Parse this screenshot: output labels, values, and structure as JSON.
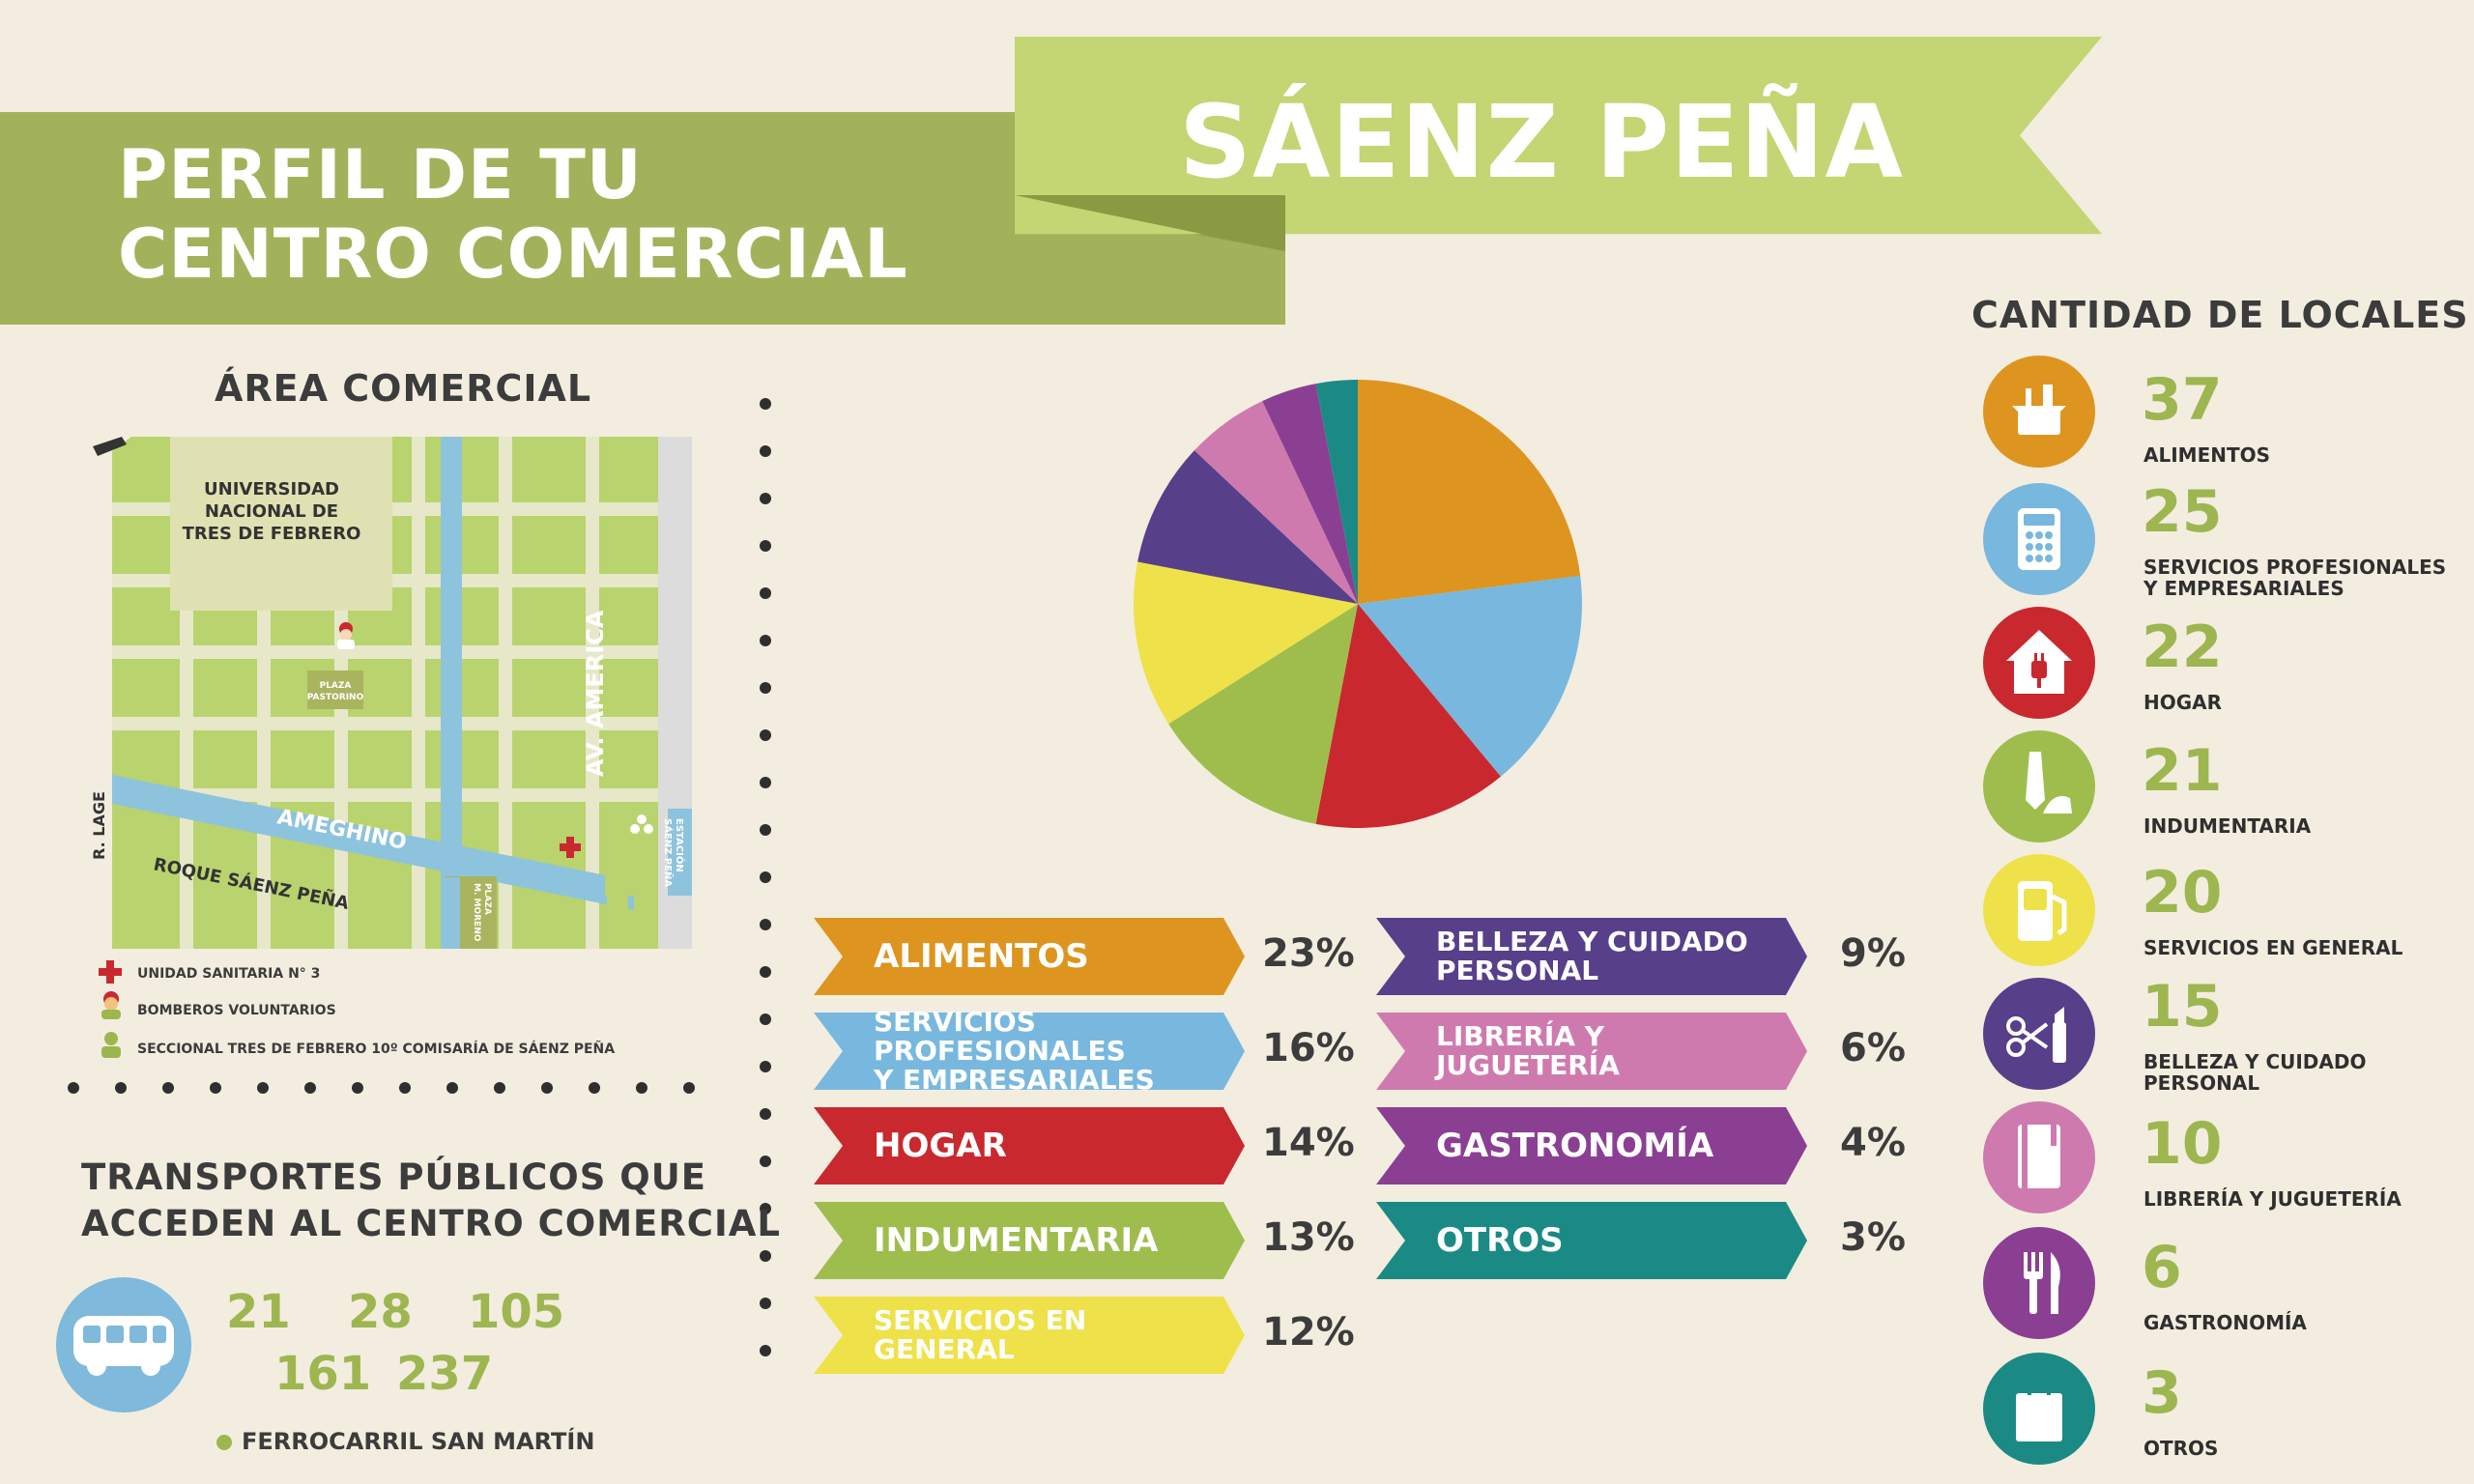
{
  "header": {
    "title_line1": "PERFIL DE TU",
    "title_line2": "CENTRO COMERCIAL",
    "center_name": "SÁENZ PEÑA"
  },
  "area": {
    "title": "ÁREA COMERCIAL",
    "map_labels": {
      "university": [
        "UNIVERSIDAD",
        "NACIONAL DE",
        "TRES DE FEBRERO"
      ],
      "plaza_pastorino": [
        "PLAZA",
        "PASTORINO"
      ],
      "av_america": "AV. AMERICA",
      "ameghino": "AMEGHINO",
      "roque": "ROQUE SÁENZ PEÑA",
      "r_lage": "R. LAGE",
      "estacion": [
        "ESTACIÓN",
        "SÁENZ PEÑA"
      ],
      "plaza_moreno": [
        "PLAZA",
        "M. MORENO"
      ]
    },
    "legend": [
      {
        "icon": "red-cross-icon",
        "label": "UNIDAD SANITARIA N° 3"
      },
      {
        "icon": "firefighter-icon",
        "label": "BOMBEROS VOLUNTARIOS"
      },
      {
        "icon": "police-icon",
        "label": "SECCIONAL TRES DE FEBRERO 10º COMISARÍA DE SÁENZ PEÑA"
      }
    ]
  },
  "transport": {
    "title_line1": "TRANSPORTES PÚBLICOS QUE",
    "title_line2": "ACCEDEN AL CENTRO COMERCIAL",
    "routes_row1": [
      "21",
      "28",
      "105"
    ],
    "routes_row2": [
      "161",
      "237"
    ],
    "rail": "FERROCARRIL SAN MARTÍN"
  },
  "colors": {
    "alimentos": "#dd951f",
    "servicios_prof": "#78b8de",
    "hogar": "#c9282e",
    "indumentaria": "#9fbd4d",
    "servicios_gen": "#efe14a",
    "belleza": "#573f8a",
    "libreria": "#cf7aaf",
    "gastronomia": "#8b3f93",
    "otros": "#1b8a84",
    "banner": "#a2b25a",
    "ribbon": "#c4d573",
    "ribbon_fold": "#91a04a",
    "green_text": "#9db650"
  },
  "chart_data": {
    "type": "pie",
    "categories": [
      "ALIMENTOS",
      "SERVICIOS PROFESIONALES Y EMPRESARIALES",
      "HOGAR",
      "INDUMENTARIA",
      "SERVICIOS EN GENERAL",
      "BELLEZA Y CUIDADO PERSONAL",
      "LIBRERÍA Y JUGUETERÍA",
      "GASTRONOMÍA",
      "OTROS"
    ],
    "values": [
      23,
      16,
      14,
      13,
      12,
      9,
      6,
      4,
      3
    ],
    "value_labels": [
      "23%",
      "16%",
      "14%",
      "13%",
      "12%",
      "9%",
      "6%",
      "4%",
      "3%"
    ],
    "start": "12 o'clock, clockwise"
  },
  "legend_left": [
    {
      "lines": [
        "ALIMENTOS"
      ],
      "pct": "23%",
      "color": "#dd951f"
    },
    {
      "lines": [
        "SERVICIOS PROFESIONALES",
        "Y EMPRESARIALES"
      ],
      "pct": "16%",
      "color": "#78b8de"
    },
    {
      "lines": [
        "HOGAR"
      ],
      "pct": "14%",
      "color": "#c9282e"
    },
    {
      "lines": [
        "INDUMENTARIA"
      ],
      "pct": "13%",
      "color": "#9fbd4d"
    },
    {
      "lines": [
        "SERVICIOS EN",
        "GENERAL"
      ],
      "pct": "12%",
      "color": "#efe14a"
    }
  ],
  "legend_right": [
    {
      "lines": [
        "BELLEZA Y CUIDADO",
        "PERSONAL"
      ],
      "pct": "9%",
      "color": "#573f8a"
    },
    {
      "lines": [
        "LIBRERÍA Y",
        "JUGUETERÍA"
      ],
      "pct": "6%",
      "color": "#cf7aaf"
    },
    {
      "lines": [
        "GASTRONOMÍA"
      ],
      "pct": "4%",
      "color": "#8b3f93"
    },
    {
      "lines": [
        "OTROS"
      ],
      "pct": "3%",
      "color": "#1b8a84"
    }
  ],
  "counts": {
    "title": "CANTIDAD DE LOCALES",
    "items": [
      {
        "num": "37",
        "lines": [
          "ALIMENTOS"
        ],
        "icon": "grocery-basket-icon",
        "color": "#dd951f"
      },
      {
        "num": "25",
        "lines": [
          "SERVICIOS PROFESIONALES",
          "Y EMPRESARIALES"
        ],
        "icon": "calculator-icon",
        "color": "#78b8de"
      },
      {
        "num": "22",
        "lines": [
          "HOGAR"
        ],
        "icon": "house-plug-icon",
        "color": "#c9282e"
      },
      {
        "num": "21",
        "lines": [
          "INDUMENTARIA"
        ],
        "icon": "tie-heel-icon",
        "color": "#9fbd4d"
      },
      {
        "num": "20",
        "lines": [
          "SERVICIOS EN GENERAL"
        ],
        "icon": "fuel-pump-icon",
        "color": "#efe14a"
      },
      {
        "num": "15",
        "lines": [
          "BELLEZA Y CUIDADO",
          "PERSONAL"
        ],
        "icon": "scissors-lipstick-icon",
        "color": "#573f8a"
      },
      {
        "num": "10",
        "lines": [
          "LIBRERÍA Y JUGUETERÍA"
        ],
        "icon": "notebook-icon",
        "color": "#cf7aaf"
      },
      {
        "num": "6",
        "lines": [
          "GASTRONOMÍA"
        ],
        "icon": "fork-knife-icon",
        "color": "#8b3f93"
      },
      {
        "num": "3",
        "lines": [
          "OTROS"
        ],
        "icon": "shopping-bag-icon",
        "color": "#1b8a84"
      }
    ]
  }
}
